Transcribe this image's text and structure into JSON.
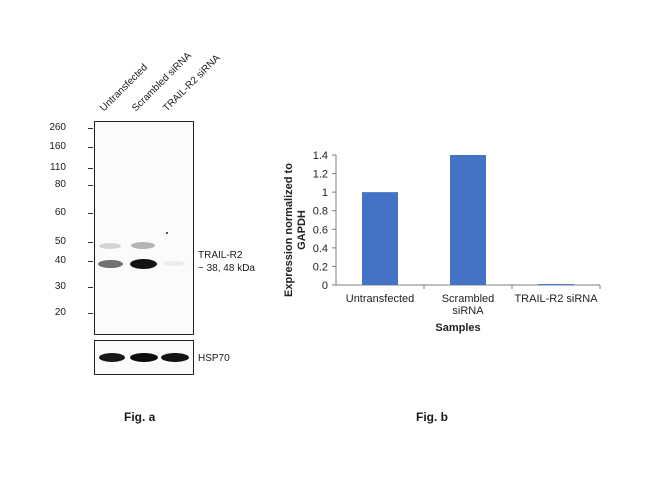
{
  "blot": {
    "lanes": [
      "Untransfected",
      "Scrambled siRNA",
      "TRAIL-R2 siRNA"
    ],
    "markers": [
      "260",
      "160",
      "110",
      "80",
      "60",
      "50",
      "40",
      "30",
      "20"
    ],
    "target_label": "TRAIL-R2",
    "target_size": "~ 38, 48 kDa",
    "loading_label": "HSP70"
  },
  "captions": {
    "fig_a": "Fig. a",
    "fig_b": "Fig. b"
  },
  "chart_data": {
    "type": "bar",
    "categories": [
      "Untransfected",
      "Scrambled siRNA",
      "TRAIL-R2 siRNA"
    ],
    "values": [
      1.0,
      1.4,
      0.01
    ],
    "ylabel_line1": "Expression normalized to",
    "ylabel_line2": "GAPDH",
    "xlabel": "Samples",
    "ylim": [
      0,
      1.4
    ],
    "yticks": [
      "0",
      "0.2",
      "0.4",
      "0.6",
      "0.8",
      "1",
      "1.2",
      "1.4"
    ],
    "grid": false,
    "bar_color": "#4472c4"
  }
}
